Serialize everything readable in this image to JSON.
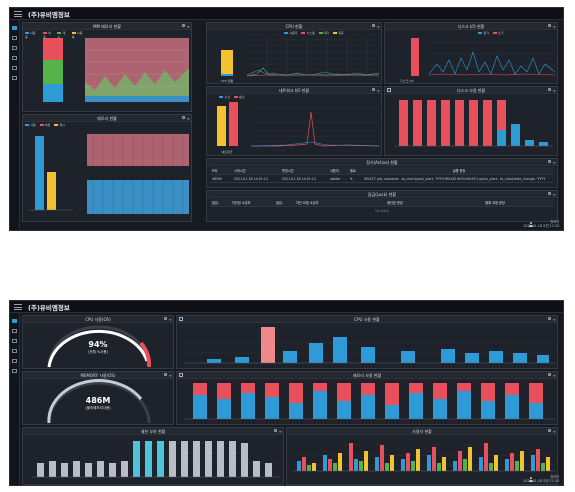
{
  "colors": {
    "blue": "#2f9bd6",
    "red": "#e8505b",
    "green": "#55b34a",
    "yellow": "#f2c230",
    "pink": "#f08a8a",
    "gray": "#b9bec6",
    "cyan": "#4fc3d9"
  },
  "screen1": {
    "title": "(주)유비엠정보",
    "panels": {
      "mem": {
        "title": "MM 메모리 현황",
        "legend": [
          "사용 중",
          "여유",
          "캐시",
          "사용률"
        ]
      },
      "cpu": {
        "title": "CPU 현황",
        "legend": [
          "사용자",
          "시스템",
          "대기",
          "유휴"
        ],
        "bar_label": "CPU 현황"
      },
      "disk_io": {
        "title": "디스크 I/O 현황",
        "legend": [
          "읽기",
          "쓰기"
        ],
        "bar_label": "디스크 I/O"
      },
      "swap": {
        "title": "메모리 현황",
        "legend": [
          "사용",
          "여유",
          "캐시"
        ],
        "bar_label": "메모리 현황"
      },
      "net": {
        "title": "네트워크 I/O 현황",
        "legend": [
          "수신",
          "송신"
        ],
        "bar_label": "네트워크"
      },
      "disk_use": {
        "title": "디스크 사용 현황"
      },
      "active": {
        "title": "장기(Active) 현황",
        "columns": [
          "PID",
          "시작시간",
          "변경시간",
          "사용자",
          "종료",
          "실행 문장"
        ],
        "rows": [
          [
            "48395",
            "2021-01-18 14:51:12",
            "2021-01-18 14:51:12",
            "ubidm",
            "",
            "SELECT pid, usename , to_char(query_start, 'YYYY-MM-DD HH24:MI:SS') query_start , to_char(state_change, 'YYYY"
          ]
        ]
      },
      "lock": {
        "title": "잠금(Lock) 현황",
        "columns": [
          "잠금..",
          "차단된 소유자",
          "잠금..",
          "차단 요청 소유자",
          "중단된 문장",
          "블록 요청 문장"
        ],
        "empty": "No data"
      }
    },
    "footer": {
      "user": "관리자",
      "date": "2021-01-18 오전 11:33"
    }
  },
  "screen2": {
    "title": "(주)유비엠정보",
    "panels": {
      "cpu_gauge": {
        "title": "CPU 사용(OS)",
        "value": "94%",
        "sub": "(전체 %사용)",
        "percent": 94
      },
      "mem_gauge": {
        "title": "MEMORY 사용(OS)",
        "value": "486M",
        "sub": "(물리메모리사용)",
        "percent": 78
      },
      "cpu_bars": {
        "title": "CPU 사용 현황"
      },
      "mem_bars": {
        "title": "메모리 사용 현황"
      },
      "session": {
        "title": "세션 부하 현황"
      },
      "stacked": {
        "title": "사용자 현황"
      }
    },
    "footer": {
      "user": "관리자",
      "date": "2021-01-18 오전 11:33"
    }
  }
}
